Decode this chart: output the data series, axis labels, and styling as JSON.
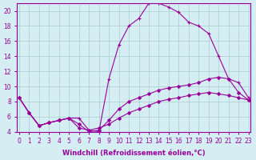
{
  "xlabel": "Windchill (Refroidissement éolien,°C)",
  "ylabel": "",
  "background_color": "#d4eef4",
  "line_color": "#990099",
  "grid_color": "#aacccc",
  "xlim": [
    0,
    23
  ],
  "ylim": [
    4,
    21
  ],
  "yticks": [
    4,
    6,
    8,
    10,
    12,
    14,
    16,
    18,
    20
  ],
  "xticks": [
    0,
    1,
    2,
    3,
    4,
    5,
    6,
    7,
    8,
    9,
    10,
    11,
    12,
    13,
    14,
    15,
    16,
    17,
    18,
    19,
    20,
    21,
    22,
    23
  ],
  "series": [
    {
      "x": [
        0,
        1,
        2,
        3,
        4,
        5,
        6,
        7,
        8,
        9,
        10,
        11,
        12,
        13,
        14,
        15,
        16,
        17,
        18,
        19,
        20,
        21,
        22,
        23
      ],
      "y": [
        8.5,
        6.5,
        4.8,
        5.2,
        5.5,
        5.8,
        5.8,
        4.2,
        4.0,
        11.0,
        15.5,
        18.0,
        19.0,
        21.0,
        21.0,
        20.5,
        19.8,
        18.5,
        18.0,
        17.0,
        14.0,
        11.0,
        10.5,
        8.5
      ],
      "marker": "+"
    },
    {
      "x": [
        0,
        1,
        2,
        3,
        4,
        5,
        6,
        7,
        8,
        9,
        10,
        11,
        12,
        13,
        14,
        15,
        16,
        17,
        18,
        19,
        20,
        21,
        22,
        23
      ],
      "y": [
        8.5,
        6.5,
        4.8,
        5.2,
        5.5,
        5.8,
        5.0,
        4.0,
        4.2,
        5.5,
        7.0,
        8.0,
        8.5,
        9.0,
        9.5,
        9.8,
        10.0,
        10.2,
        10.5,
        11.0,
        11.2,
        11.0,
        9.2,
        8.2
      ],
      "marker": "D"
    },
    {
      "x": [
        0,
        1,
        2,
        3,
        4,
        5,
        6,
        7,
        8,
        9,
        10,
        11,
        12,
        13,
        14,
        15,
        16,
        17,
        18,
        19,
        20,
        21,
        22,
        23
      ],
      "y": [
        8.5,
        6.5,
        4.8,
        5.2,
        5.5,
        5.8,
        4.5,
        4.2,
        4.5,
        5.0,
        5.8,
        6.5,
        7.0,
        7.5,
        8.0,
        8.3,
        8.5,
        8.8,
        9.0,
        9.2,
        9.0,
        8.8,
        8.5,
        8.2
      ],
      "marker": "D"
    }
  ]
}
